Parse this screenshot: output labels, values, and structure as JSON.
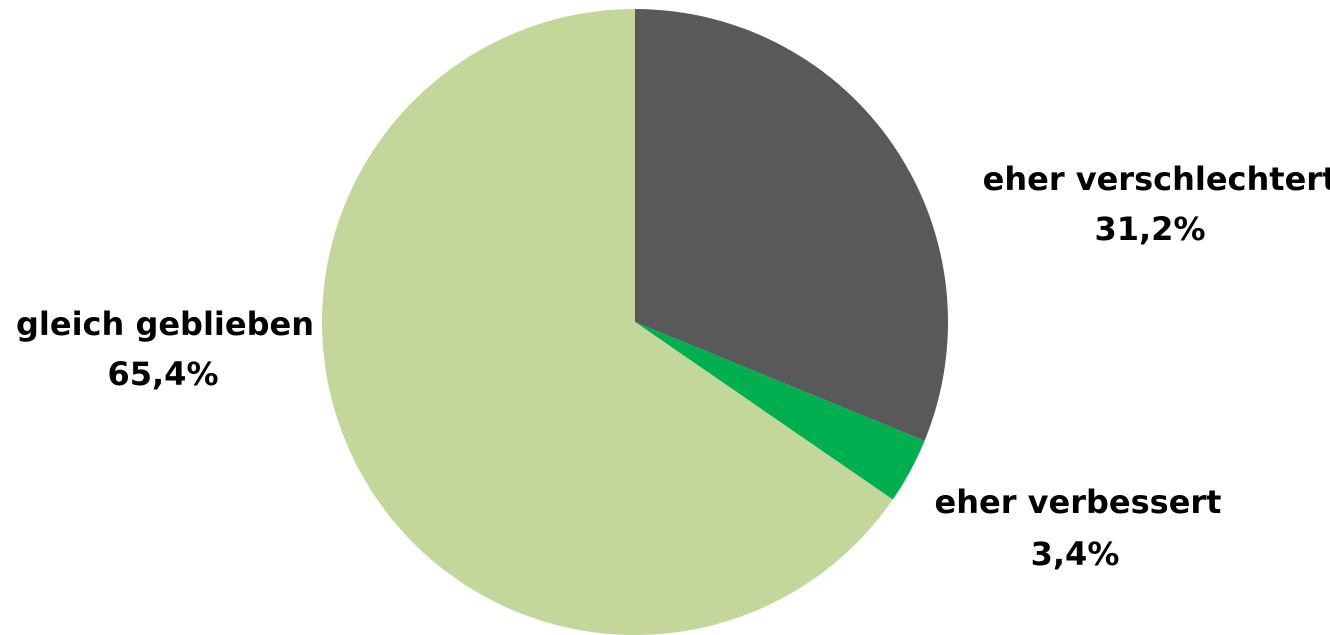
{
  "chart_data": {
    "type": "pie",
    "title": "",
    "start_angle_deg": 0,
    "direction": "clockwise",
    "slices": [
      {
        "label": "eher verschlechtert",
        "value": 31.2,
        "value_label": "31,2%",
        "color": "#595959"
      },
      {
        "label": "eher verbessert",
        "value": 3.4,
        "value_label": "3,4%",
        "color": "#00B050"
      },
      {
        "label": "gleich geblieben",
        "value": 65.4,
        "value_label": "65,4%",
        "color": "#C4D79B"
      }
    ]
  }
}
